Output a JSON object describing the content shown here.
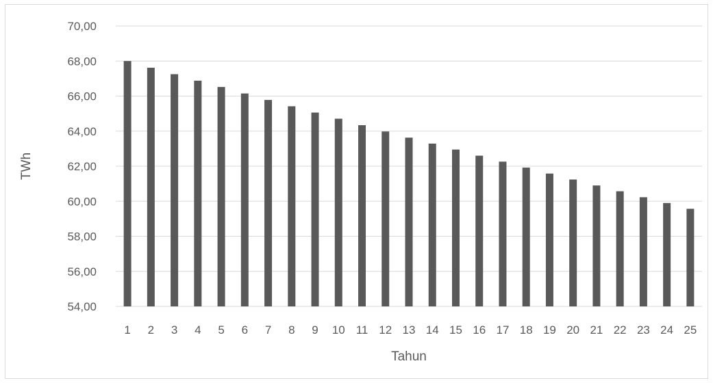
{
  "chart_data": {
    "type": "bar",
    "title": "",
    "xlabel": "Tahun",
    "ylabel": "TWh",
    "ylim": [
      54,
      70
    ],
    "y_ticks": [
      "54,00",
      "56,00",
      "58,00",
      "60,00",
      "62,00",
      "64,00",
      "66,00",
      "68,00",
      "70,00"
    ],
    "y_tick_values": [
      54,
      56,
      58,
      60,
      62,
      64,
      66,
      68,
      70
    ],
    "categories": [
      "1",
      "2",
      "3",
      "4",
      "5",
      "6",
      "7",
      "8",
      "9",
      "10",
      "11",
      "12",
      "13",
      "14",
      "15",
      "16",
      "17",
      "18",
      "19",
      "20",
      "21",
      "22",
      "23",
      "24",
      "25"
    ],
    "values": [
      68.0,
      67.62,
      67.25,
      66.88,
      66.52,
      66.15,
      65.78,
      65.42,
      65.06,
      64.71,
      64.34,
      63.98,
      63.63,
      63.29,
      62.95,
      62.6,
      62.26,
      61.92,
      61.58,
      61.24,
      60.9,
      60.57,
      60.23,
      59.9,
      59.57
    ],
    "grid": true,
    "legend": "none",
    "bar_color": "#595959",
    "grid_color": "#d9d9d9"
  }
}
